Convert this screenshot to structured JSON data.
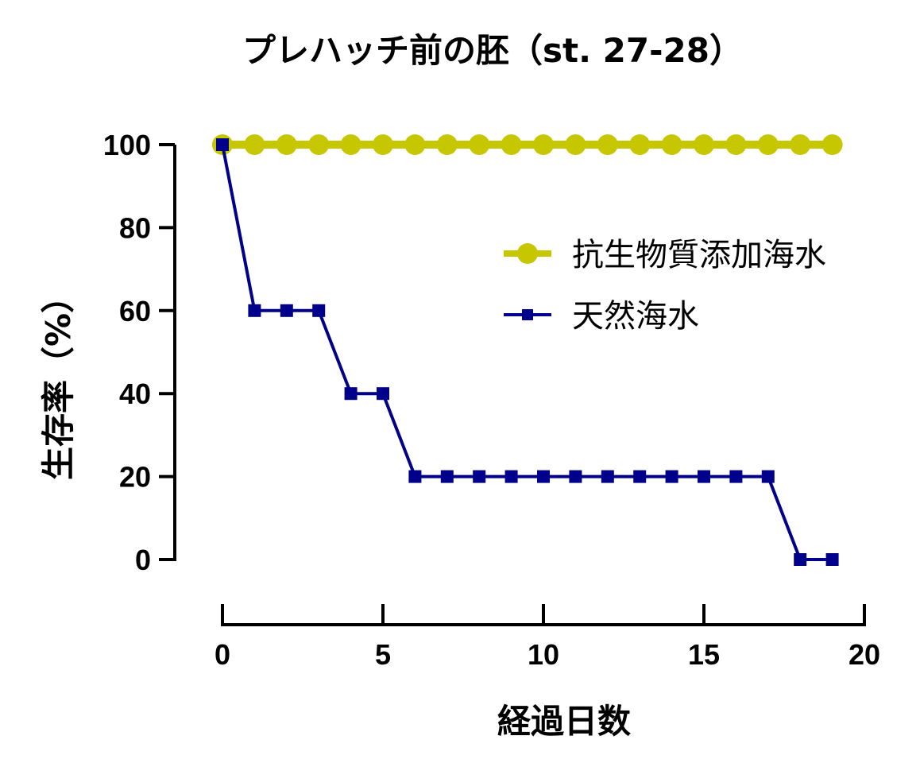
{
  "chart_data": {
    "type": "line",
    "title": "プレハッチ前の胚（st. 27-28）",
    "xlabel": "経過日数",
    "ylabel": "生存率（%）",
    "xlim": [
      0,
      20
    ],
    "ylim": [
      0,
      100
    ],
    "x_ticks": [
      "0",
      "5",
      "10",
      "15",
      "20"
    ],
    "y_ticks": [
      "0",
      "20",
      "40",
      "60",
      "80",
      "100"
    ],
    "grid": false,
    "legend_position": "right",
    "series": [
      {
        "name": "抗生物質添加海水",
        "color": "#C7C700",
        "marker": "circle",
        "x": [
          0,
          1,
          2,
          3,
          4,
          5,
          6,
          7,
          8,
          9,
          10,
          11,
          12,
          13,
          14,
          15,
          16,
          17,
          18,
          19
        ],
        "values": [
          100,
          100,
          100,
          100,
          100,
          100,
          100,
          100,
          100,
          100,
          100,
          100,
          100,
          100,
          100,
          100,
          100,
          100,
          100,
          100
        ]
      },
      {
        "name": "天然海水",
        "color": "#00008B",
        "marker": "square",
        "x": [
          0,
          1,
          2,
          3,
          4,
          5,
          6,
          7,
          8,
          9,
          10,
          11,
          12,
          13,
          14,
          15,
          16,
          17,
          18,
          19
        ],
        "values": [
          100,
          60,
          60,
          60,
          40,
          40,
          20,
          20,
          20,
          20,
          20,
          20,
          20,
          20,
          20,
          20,
          20,
          20,
          0,
          0
        ]
      }
    ]
  }
}
